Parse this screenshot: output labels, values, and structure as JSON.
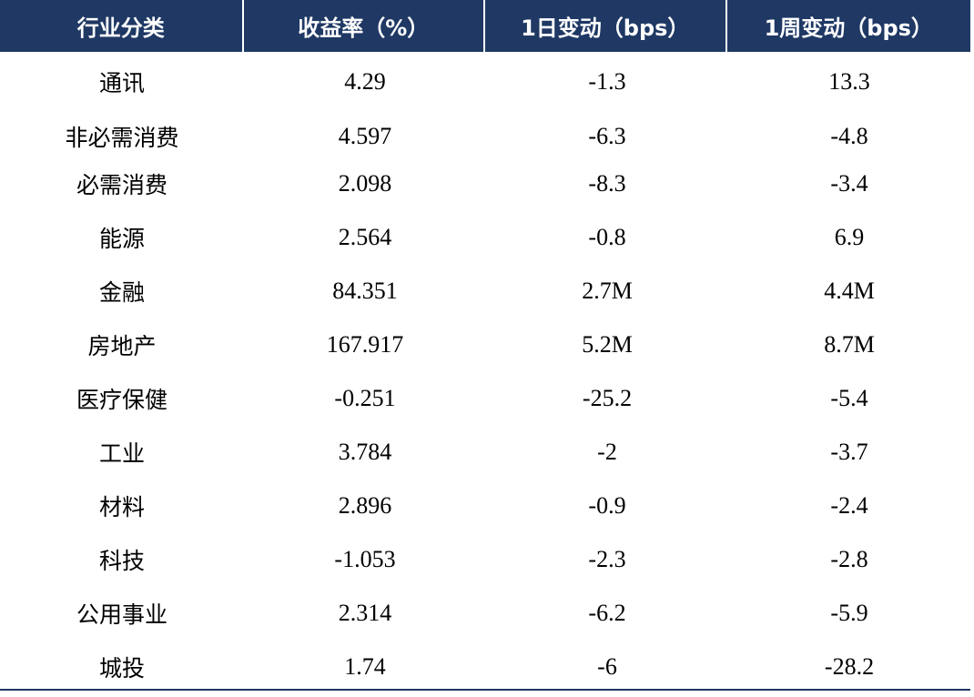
{
  "table": {
    "headers": [
      "行业分类",
      "收益率（%）",
      "1日变动（bps）",
      "1周变动（bps）"
    ],
    "rows": [
      {
        "industry": "通讯",
        "yield": "4.29",
        "day_change": "-1.3",
        "week_change": "13.3"
      },
      {
        "industry": "非必需消费",
        "yield": "4.597",
        "day_change": "-6.3",
        "week_change": "-4.8"
      },
      {
        "industry": "必需消费",
        "yield": "2.098",
        "day_change": "-8.3",
        "week_change": "-3.4"
      },
      {
        "industry": "能源",
        "yield": "2.564",
        "day_change": "-0.8",
        "week_change": "6.9"
      },
      {
        "industry": "金融",
        "yield": "84.351",
        "day_change": "2.7M",
        "week_change": "4.4M"
      },
      {
        "industry": "房地产",
        "yield": "167.917",
        "day_change": "5.2M",
        "week_change": "8.7M"
      },
      {
        "industry": "医疗保健",
        "yield": "-0.251",
        "day_change": "-25.2",
        "week_change": "-5.4"
      },
      {
        "industry": "工业",
        "yield": "3.784",
        "day_change": "-2",
        "week_change": "-3.7"
      },
      {
        "industry": "材料",
        "yield": "2.896",
        "day_change": "-0.9",
        "week_change": "-2.4"
      },
      {
        "industry": "科技",
        "yield": "-1.053",
        "day_change": "-2.3",
        "week_change": "-2.8"
      },
      {
        "industry": "公用事业",
        "yield": "2.314",
        "day_change": "-6.2",
        "week_change": "-5.9"
      },
      {
        "industry": "城投",
        "yield": "1.74",
        "day_change": "-6",
        "week_change": "-28.2"
      }
    ]
  },
  "colors": {
    "header_bg": "#1f3864",
    "header_text": "#ffffff",
    "body_text": "#000000",
    "rule": "#1f3864"
  }
}
